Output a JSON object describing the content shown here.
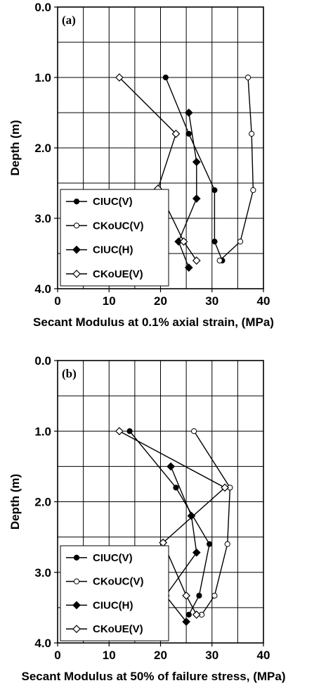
{
  "chart_data": [
    {
      "type": "line",
      "panel_label": "(a)",
      "xlabel": "Secant Modulus at 0.1% axial strain, (MPa)",
      "ylabel": "Depth (m)",
      "xlim": [
        0,
        40
      ],
      "ylim": [
        0.0,
        4.0
      ],
      "y_inverted": true,
      "xticks": [
        "0",
        "10",
        "20",
        "30",
        "40"
      ],
      "yticks": [
        "0.0",
        "1.0",
        "2.0",
        "3.0",
        "4.0"
      ],
      "grid": true,
      "legend_position": "lower-left",
      "series": [
        {
          "name": "CIUC(V)",
          "marker": "filled-circle",
          "points": [
            [
              21,
              1.0
            ],
            [
              25.5,
              1.8
            ],
            [
              30.5,
              2.6
            ],
            [
              30.5,
              3.33
            ],
            [
              32,
              3.6
            ]
          ]
        },
        {
          "name": "CKoUC(V)",
          "marker": "open-circle",
          "points": [
            [
              37,
              1.0
            ],
            [
              37.7,
              1.8
            ],
            [
              38,
              2.6
            ],
            [
              35.5,
              3.33
            ],
            [
              31.5,
              3.6
            ]
          ]
        },
        {
          "name": "CIUC(H)",
          "marker": "filled-diamond",
          "points": [
            [
              25.5,
              1.5
            ],
            [
              27,
              2.2
            ],
            [
              27,
              2.72
            ],
            [
              23.5,
              3.33
            ],
            [
              25.5,
              3.7
            ]
          ]
        },
        {
          "name": "CKoUE(V)",
          "marker": "open-diamond",
          "points": [
            [
              12,
              1.0
            ],
            [
              23,
              1.8
            ],
            [
              19.5,
              2.58
            ],
            [
              24.5,
              3.33
            ],
            [
              27,
              3.6
            ]
          ]
        }
      ]
    },
    {
      "type": "line",
      "panel_label": "(b)",
      "xlabel": "Secant Modulus at 50% of failure stress, (MPa)",
      "ylabel": "Depth (m)",
      "xlim": [
        0,
        40
      ],
      "ylim": [
        0.0,
        4.0
      ],
      "y_inverted": true,
      "xticks": [
        "0",
        "10",
        "20",
        "30",
        "40"
      ],
      "yticks": [
        "0.0",
        "1.0",
        "2.0",
        "3.0",
        "4.0"
      ],
      "grid": true,
      "legend_position": "lower-left",
      "series": [
        {
          "name": "CIUC(V)",
          "marker": "filled-circle",
          "points": [
            [
              14,
              1.0
            ],
            [
              23,
              1.8
            ],
            [
              29.5,
              2.6
            ],
            [
              27.5,
              3.33
            ],
            [
              25.5,
              3.6
            ]
          ]
        },
        {
          "name": "CKoUC(V)",
          "marker": "open-circle",
          "points": [
            [
              26.5,
              1.0
            ],
            [
              33.5,
              1.8
            ],
            [
              33,
              2.6
            ],
            [
              30.5,
              3.33
            ],
            [
              28,
              3.6
            ]
          ]
        },
        {
          "name": "CIUC(H)",
          "marker": "filled-diamond",
          "points": [
            [
              22,
              1.5
            ],
            [
              26,
              2.2
            ],
            [
              27,
              2.72
            ],
            [
              21,
              3.33
            ],
            [
              25,
              3.7
            ]
          ]
        },
        {
          "name": "CKoUE(V)",
          "marker": "open-diamond",
          "points": [
            [
              12,
              1.0
            ],
            [
              32.5,
              1.8
            ],
            [
              20.5,
              2.58
            ],
            [
              25,
              3.33
            ],
            [
              27,
              3.6
            ]
          ]
        }
      ]
    }
  ]
}
